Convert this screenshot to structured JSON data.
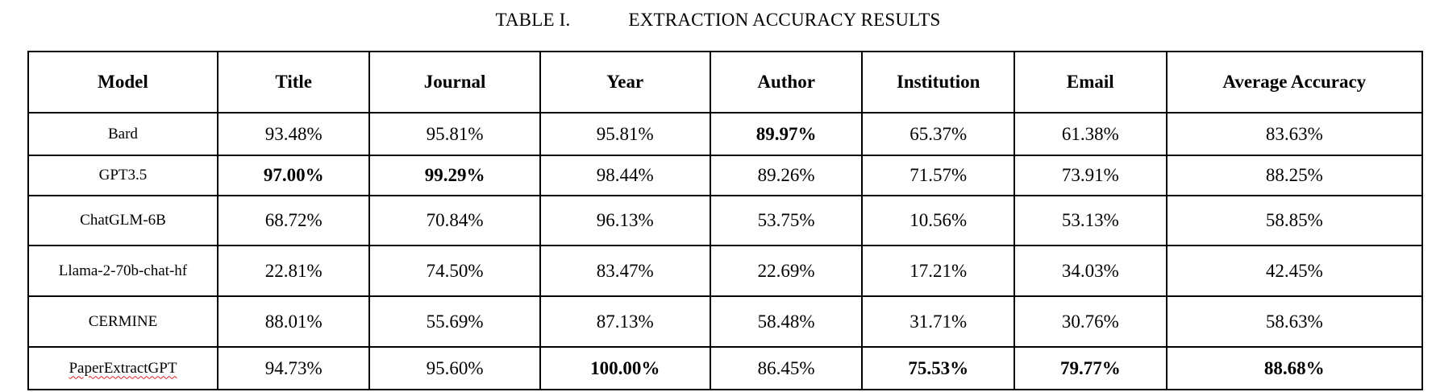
{
  "caption": {
    "label": "TABLE I.",
    "title": "EXTRACTION ACCURACY RESULTS"
  },
  "table": {
    "headers": [
      "Model",
      "Title",
      "Journal",
      "Year",
      "Author",
      "Institution",
      "Email",
      "Average Accuracy"
    ],
    "rows": [
      {
        "model": "Bard",
        "cells": [
          "93.48%",
          "95.81%",
          "95.81%",
          "89.97%",
          "65.37%",
          "61.38%",
          "83.63%"
        ],
        "bold": [
          false,
          false,
          false,
          true,
          false,
          false,
          false
        ]
      },
      {
        "model": "GPT3.5",
        "cells": [
          "97.00%",
          "99.29%",
          "98.44%",
          "89.26%",
          "71.57%",
          "73.91%",
          "88.25%"
        ],
        "bold": [
          true,
          true,
          false,
          false,
          false,
          false,
          false
        ]
      },
      {
        "model": "ChatGLM-6B",
        "cells": [
          "68.72%",
          "70.84%",
          "96.13%",
          "53.75%",
          "10.56%",
          "53.13%",
          "58.85%"
        ],
        "bold": [
          false,
          false,
          false,
          false,
          false,
          false,
          false
        ]
      },
      {
        "model": "Llama-2-70b-chat-hf",
        "cells": [
          "22.81%",
          "74.50%",
          "83.47%",
          "22.69%",
          "17.21%",
          "34.03%",
          "42.45%"
        ],
        "bold": [
          false,
          false,
          false,
          false,
          false,
          false,
          false
        ]
      },
      {
        "model": "CERMINE",
        "cells": [
          "88.01%",
          "55.69%",
          "87.13%",
          "58.48%",
          "31.71%",
          "30.76%",
          "58.63%"
        ],
        "bold": [
          false,
          false,
          false,
          false,
          false,
          false,
          false
        ]
      },
      {
        "model": "PaperExtractGPT",
        "cells": [
          "94.73%",
          "95.60%",
          "100.00%",
          "86.45%",
          "75.53%",
          "79.77%",
          "88.68%"
        ],
        "bold": [
          false,
          false,
          true,
          false,
          true,
          true,
          true
        ]
      }
    ]
  }
}
